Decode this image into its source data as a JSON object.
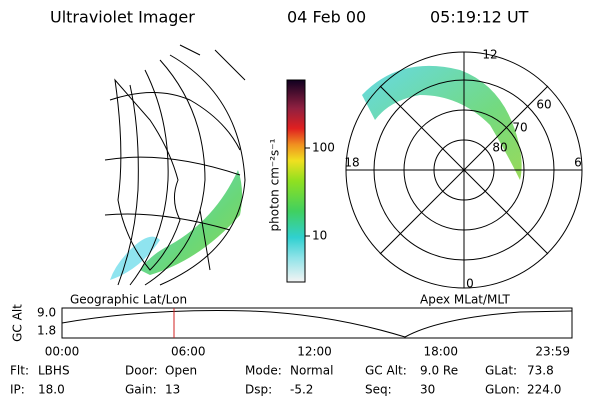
{
  "header": {
    "title": "Ultraviolet Imager",
    "date": "04 Feb 00",
    "time": "05:19:12 UT"
  },
  "colorbar": {
    "label": "photon cm⁻²s⁻¹",
    "ticks": [
      "100",
      "10"
    ]
  },
  "polar": {
    "mlt_labels": [
      "12",
      "18",
      "6",
      "0"
    ],
    "lat_labels": [
      "60",
      "70",
      "80"
    ]
  },
  "captions": {
    "left": "Geographic Lat/Lon",
    "right": "Apex MLat/MLT"
  },
  "timeline": {
    "label": "GC Alt",
    "alt_ticks": [
      "9.0",
      "1.8"
    ],
    "time_ticks": [
      "00:00",
      "06:00",
      "12:00",
      "18:00",
      "23:59"
    ]
  },
  "info": [
    [
      {
        "label": "Flt:",
        "value": "LBHS"
      },
      {
        "label": "Door:",
        "value": "Open"
      },
      {
        "label": "Mode:",
        "value": "Normal"
      },
      {
        "label": "GC Alt:",
        "value": "9.0 Re"
      },
      {
        "label": "GLat:",
        "value": "73.8"
      }
    ],
    [
      {
        "label": "IP:",
        "value": "18.0"
      },
      {
        "label": "Gain:",
        "value": "13"
      },
      {
        "label": "Dsp:",
        "value": "-5.2"
      },
      {
        "label": "Seq:",
        "value": "30"
      },
      {
        "label": "GLon:",
        "value": "224.0"
      }
    ]
  ]
}
